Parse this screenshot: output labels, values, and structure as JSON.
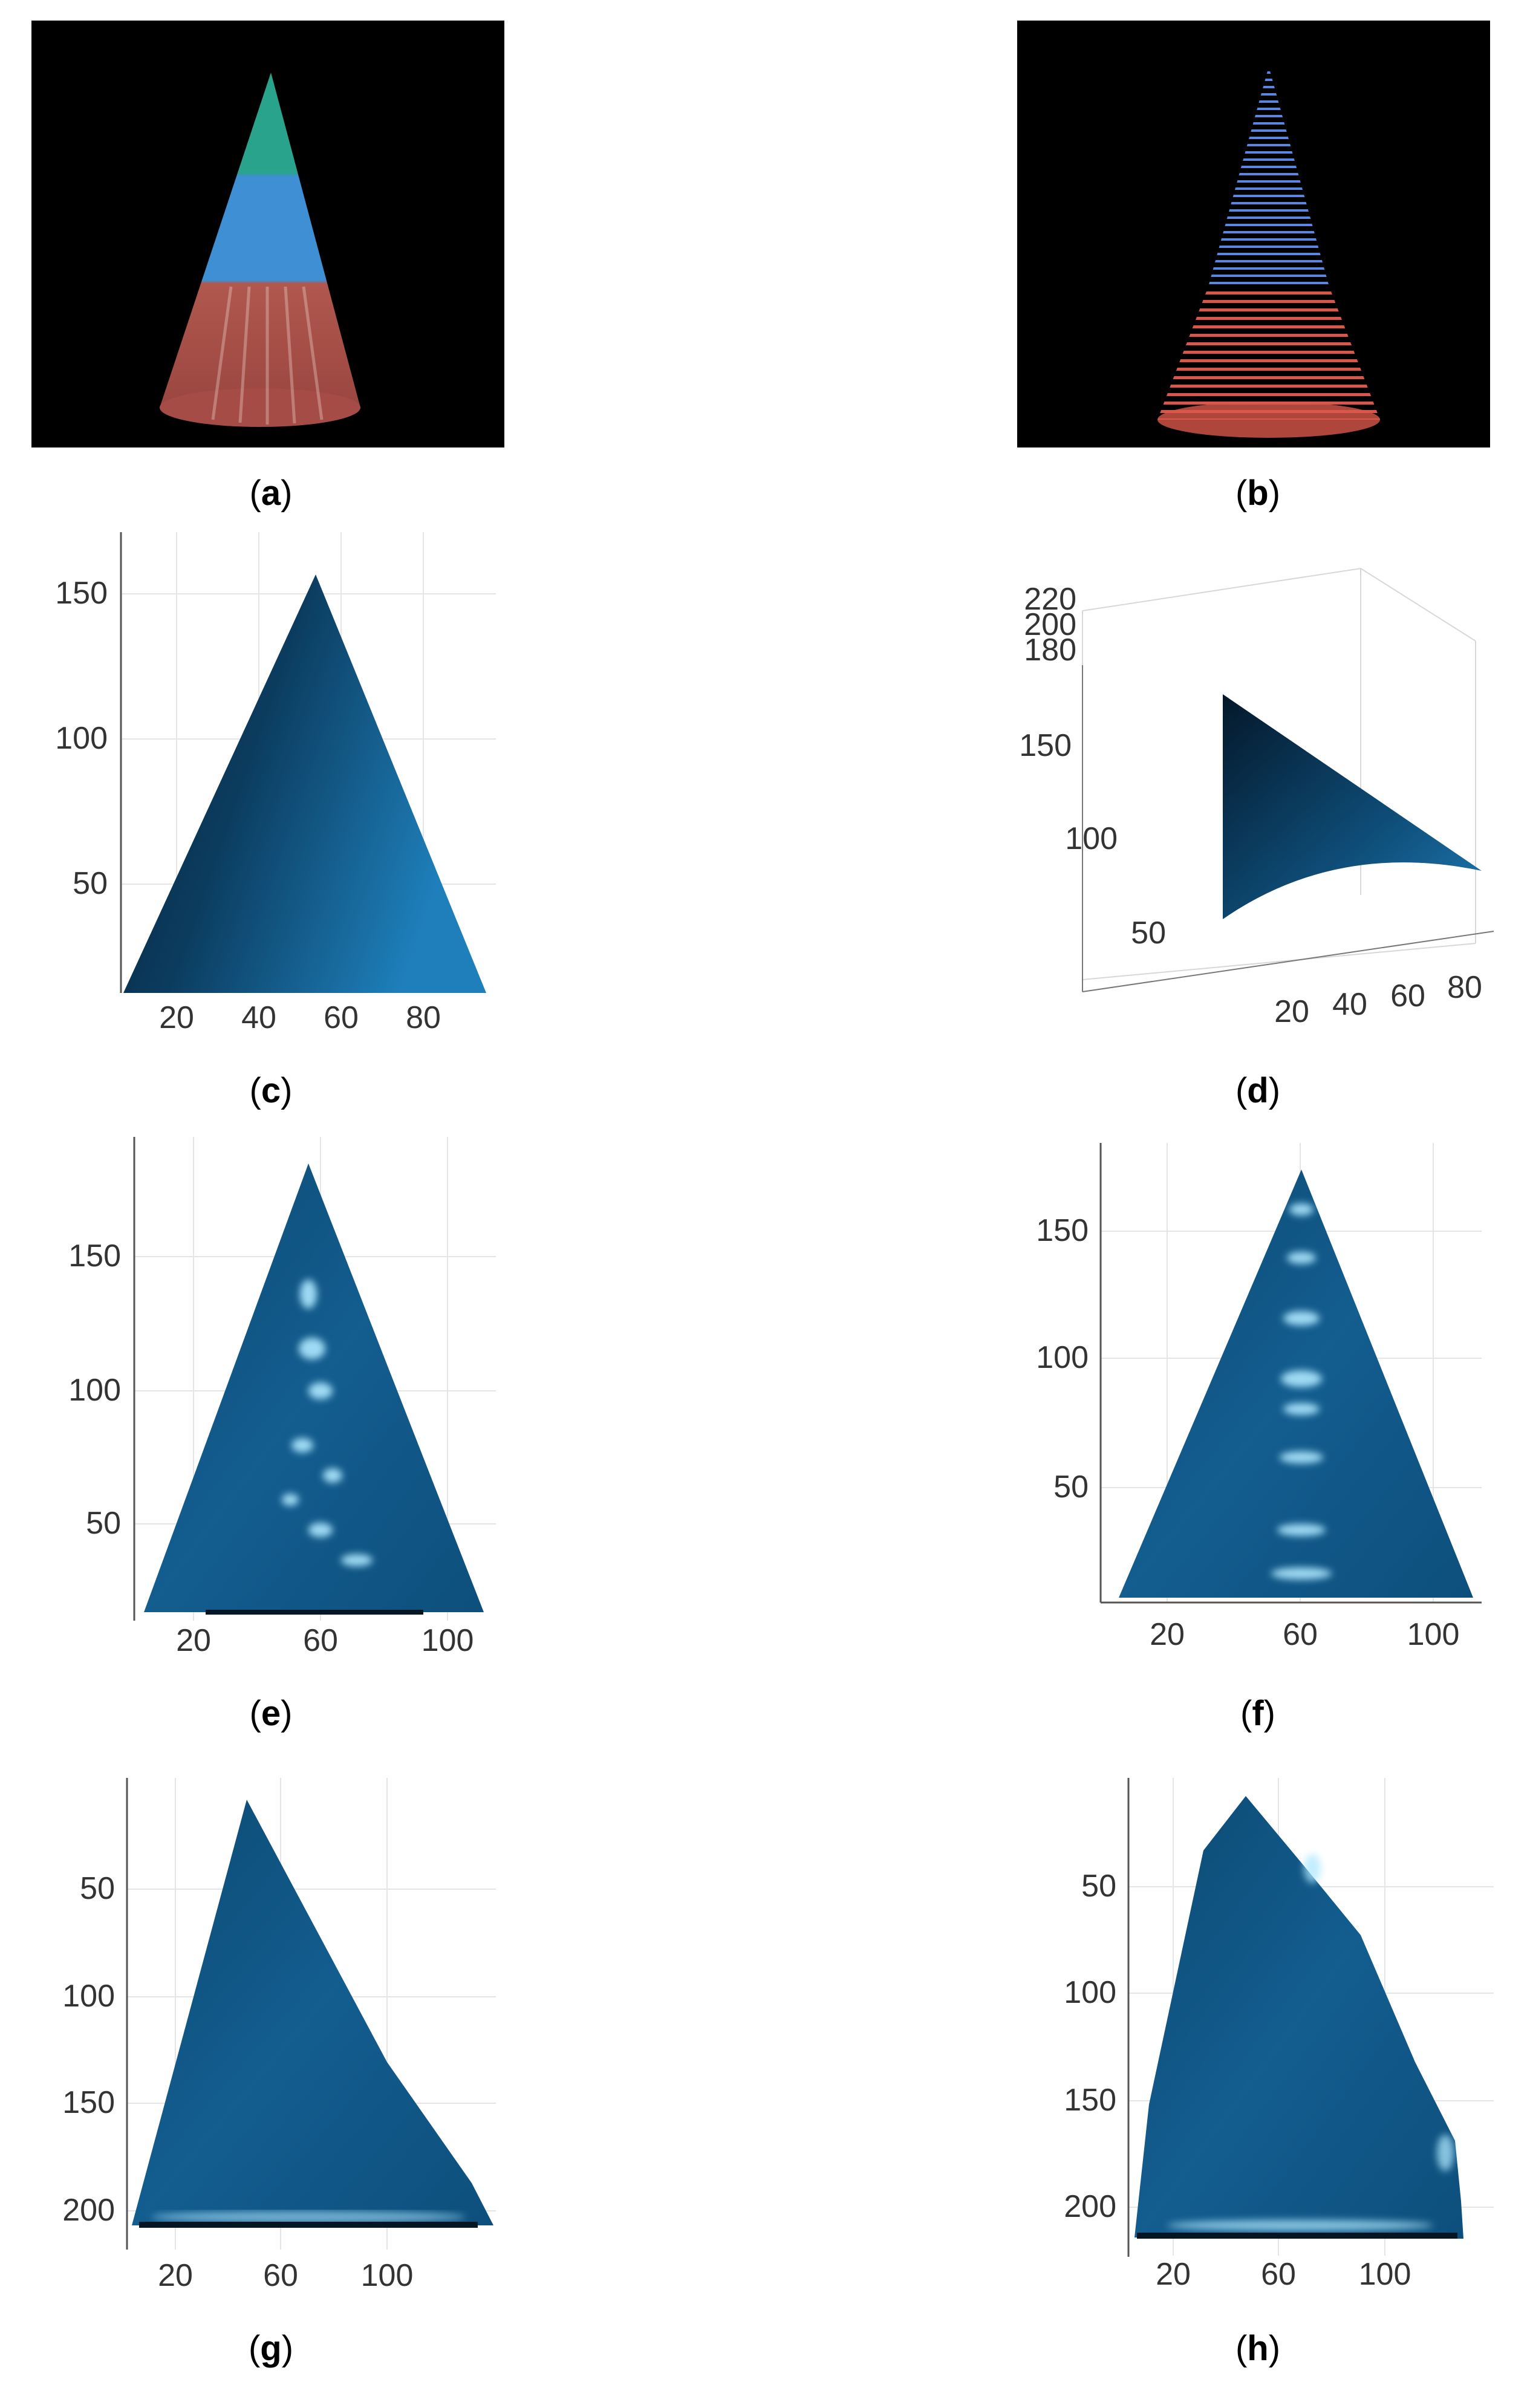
{
  "panels": [
    {
      "id": "a",
      "caption_letter": "a"
    },
    {
      "id": "b",
      "caption_letter": "b"
    },
    {
      "id": "c",
      "caption_letter": "c",
      "xticks": [
        "20",
        "40",
        "60",
        "80"
      ],
      "yticks": [
        "50",
        "100",
        "150"
      ]
    },
    {
      "id": "d",
      "caption_letter": "d",
      "xticks": [
        "20",
        "40",
        "60",
        "80"
      ],
      "yticks": [
        "50",
        "100",
        "150"
      ],
      "zticks": [
        "180",
        "200",
        "220"
      ]
    },
    {
      "id": "e",
      "caption_letter": "e",
      "xticks": [
        "20",
        "60",
        "100"
      ],
      "yticks": [
        "50",
        "100",
        "150"
      ]
    },
    {
      "id": "f",
      "caption_letter": "f",
      "xticks": [
        "20",
        "60",
        "100"
      ],
      "yticks": [
        "50",
        "100",
        "150"
      ]
    },
    {
      "id": "g",
      "caption_letter": "g",
      "xticks": [
        "20",
        "60",
        "100"
      ],
      "yticks": [
        "50",
        "100",
        "150",
        "200"
      ]
    },
    {
      "id": "h",
      "caption_letter": "h",
      "xticks": [
        "20",
        "60",
        "100"
      ],
      "yticks": [
        "50",
        "100",
        "150",
        "200"
      ]
    }
  ],
  "colors": {
    "surface_dark": "#06243a",
    "surface_mid": "#0d4d78",
    "surface_light": "#1f7fb8",
    "highlight": "#aee8ff",
    "photo_bg": "#000000",
    "cone_red": "#b5584f",
    "cone_blue": "#3b8fd1",
    "cone_green": "#2fa08c"
  }
}
